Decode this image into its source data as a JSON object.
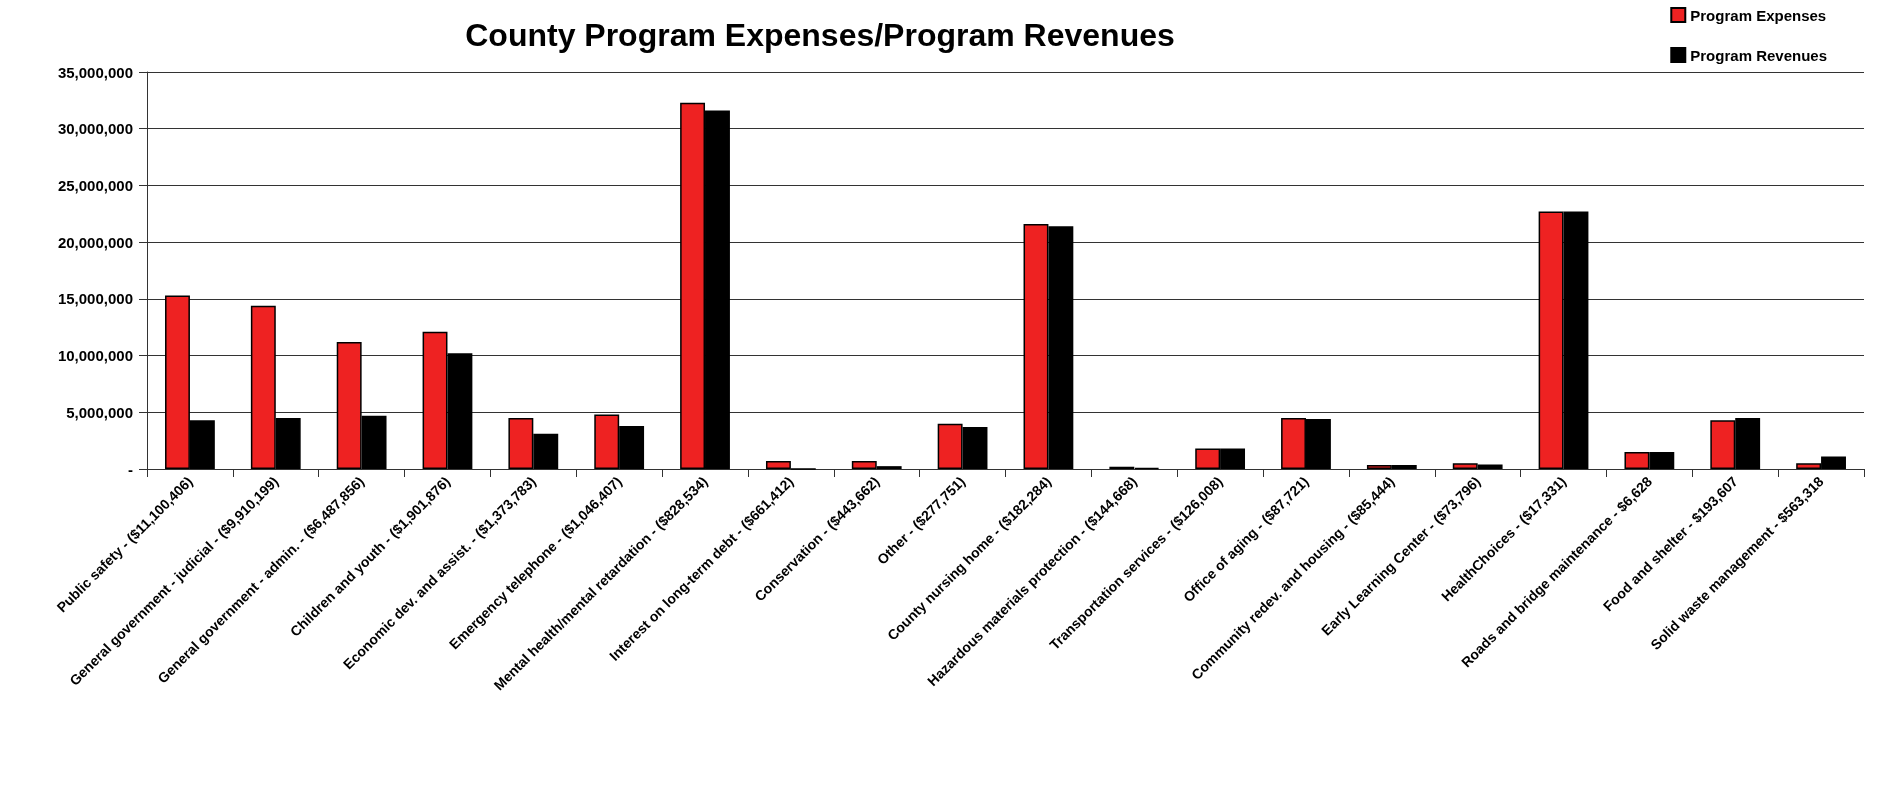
{
  "chart_data": {
    "type": "bar",
    "title": "County Program Expenses/Program Revenues",
    "categories": [
      "Public safety - ($11,100,406)",
      "General government - judicial - ($9,910,199)",
      "General government - admin. - ($6,487,856)",
      "Children and youth - ($1,901,876)",
      "Economic dev. and assist. - ($1,373,783)",
      "Emergency telephone - ($1,046,407)",
      "Mental health/mental retardation - ($828,534)",
      "Interest on long-term debt - ($661,412)",
      "Conservation - ($443,662)",
      "Other - ($277,751)",
      "County nursing home - ($182,284)",
      "Hazardous materials protection - ($144,668)",
      "Transportation services - ($126,008)",
      "Office of aging - ($87,721)",
      "Community redev. and housing - ($85,444)",
      "Early Learning Center - ($73,796)",
      "HealthChoices - ($17,331)",
      "Roads and bridge maintenance - $6,628",
      "Food and shelter - $193,607",
      "Solid waste management - $563,318"
    ],
    "series": [
      {
        "name": "Program Expenses",
        "color": "#ee2222",
        "values": [
          15300000,
          14400000,
          11200000,
          12100000,
          4500000,
          4800000,
          32300000,
          700000,
          700000,
          4000000,
          21600000,
          200000,
          1800000,
          4500000,
          350000,
          500000,
          22700000,
          1500000,
          4300000,
          500000
        ]
      },
      {
        "name": "Program Revenues",
        "color": "#000000",
        "values": [
          4300000,
          4500000,
          4700000,
          10200000,
          3100000,
          3800000,
          31600000,
          0,
          250000,
          3700000,
          21400000,
          100000,
          1800000,
          4400000,
          350000,
          400000,
          22700000,
          1500000,
          4500000,
          1100000
        ]
      }
    ],
    "ylim": [
      0,
      35000000
    ],
    "yticks": [
      {
        "value": 0,
        "label": "-"
      },
      {
        "value": 5000000,
        "label": "5,000,000"
      },
      {
        "value": 10000000,
        "label": "10,000,000"
      },
      {
        "value": 15000000,
        "label": "15,000,000"
      },
      {
        "value": 20000000,
        "label": "20,000,000"
      },
      {
        "value": 25000000,
        "label": "25,000,000"
      },
      {
        "value": 30000000,
        "label": "30,000,000"
      },
      {
        "value": 35000000,
        "label": "35,000,000"
      }
    ],
    "grid": "y",
    "legend": "top right"
  }
}
